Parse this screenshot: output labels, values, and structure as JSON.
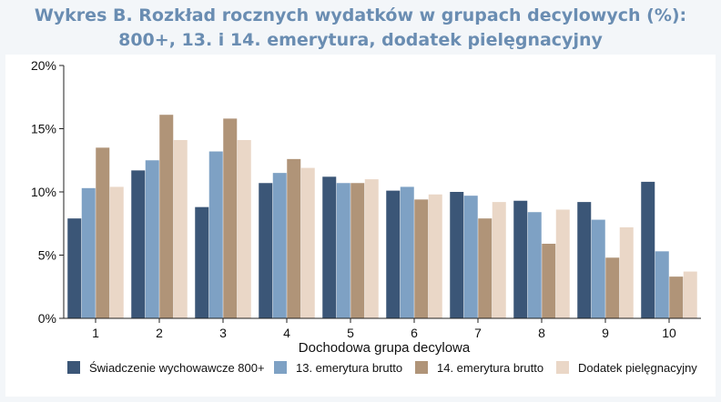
{
  "title_line1": "Wykres B. Rozkład rocznych wydatków w grupach decylowych (%):",
  "title_line2": "800+, 13. i 14. emerytura, dodatek pielęgnacyjny",
  "chart_data": {
    "type": "bar",
    "xlabel": "Dochodowa grupa decylowa",
    "ylabel": "",
    "ylim": [
      0,
      20
    ],
    "yticks": [
      0,
      5,
      10,
      15,
      20
    ],
    "ytick_labels": [
      "0%",
      "5%",
      "10%",
      "15%",
      "20%"
    ],
    "grid": false,
    "legend_position": "bottom",
    "categories": [
      "1",
      "2",
      "3",
      "4",
      "5",
      "6",
      "7",
      "8",
      "9",
      "10"
    ],
    "series": [
      {
        "name": "Świadczenie wychowawcze 800+",
        "color": "#3b5677",
        "values": [
          7.9,
          11.7,
          8.8,
          10.7,
          11.2,
          10.1,
          10.0,
          9.3,
          9.2,
          10.8
        ]
      },
      {
        "name": "13. emerytura brutto",
        "color": "#7ea1c4",
        "values": [
          10.3,
          12.5,
          13.2,
          11.5,
          10.7,
          10.4,
          9.7,
          8.4,
          7.8,
          5.3
        ]
      },
      {
        "name": "14. emerytura brutto",
        "color": "#b09478",
        "values": [
          13.5,
          16.1,
          15.8,
          12.6,
          10.7,
          9.4,
          7.9,
          5.9,
          4.8,
          3.3
        ]
      },
      {
        "name": "Dodatek pielęgnacyjny",
        "color": "#ead7c7",
        "values": [
          10.4,
          14.1,
          14.1,
          11.9,
          11.0,
          9.8,
          9.2,
          8.6,
          7.2,
          3.7
        ]
      }
    ]
  }
}
